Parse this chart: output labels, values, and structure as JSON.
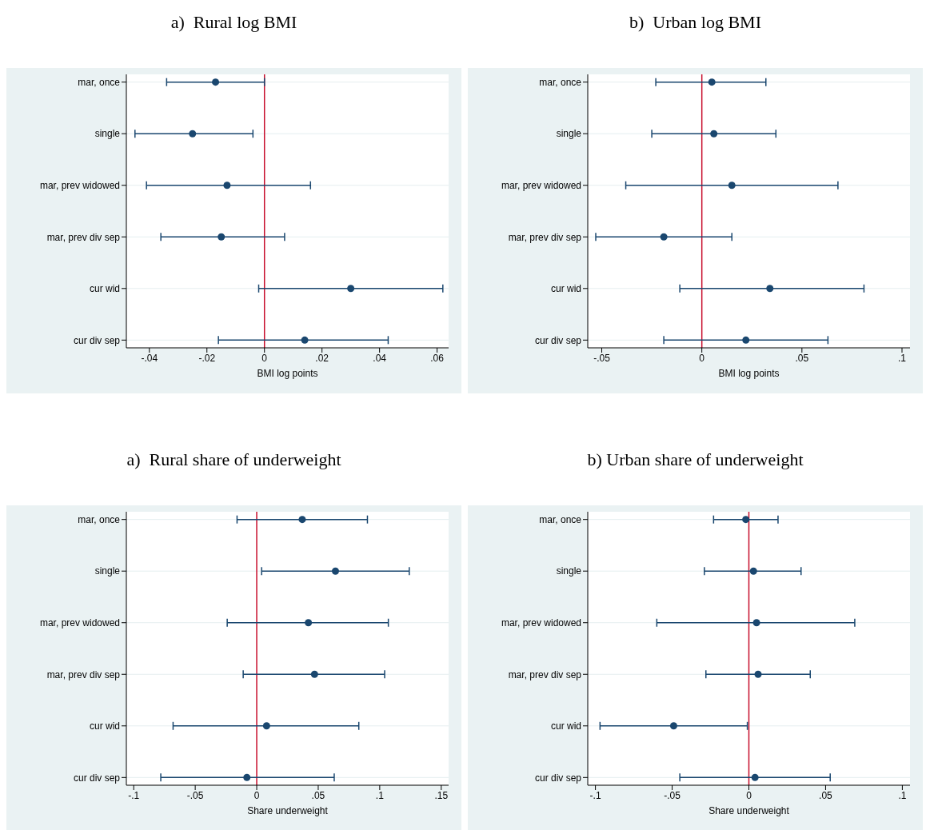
{
  "chart_data": [
    {
      "type": "scatter",
      "orientation": "horizontal",
      "title": "a)  Rural log BMI",
      "xlabel": "BMI log points",
      "categories": [
        "mar, once",
        "single",
        "mar, prev widowed",
        "mar, prev div sep",
        "cur wid",
        "cur div sep"
      ],
      "color": "#1a476f",
      "marker": "circle",
      "grid": "y",
      "values": [
        -0.017,
        -0.025,
        -0.013,
        -0.015,
        0.03,
        0.014
      ],
      "errors": [
        [
          -0.034,
          0.0
        ],
        [
          -0.045,
          -0.004
        ],
        [
          -0.041,
          0.016
        ],
        [
          -0.036,
          0.007
        ],
        [
          -0.002,
          0.062
        ],
        [
          -0.016,
          0.043
        ]
      ],
      "xlim": [
        -0.048,
        0.064
      ],
      "xticks": [
        {
          "value": -0.04,
          "label": "-.04"
        },
        {
          "value": -0.02,
          "label": "-.02"
        },
        {
          "value": 0,
          "label": "0"
        },
        {
          "value": 0.02,
          "label": ".02"
        },
        {
          "value": 0.04,
          "label": ".04"
        },
        {
          "value": 0.06,
          "label": ".06"
        }
      ],
      "ref_lines": [
        {
          "axis": "x",
          "value": 0,
          "color": "#c8102e"
        }
      ]
    },
    {
      "type": "scatter",
      "orientation": "horizontal",
      "title": "b)  Urban log BMI",
      "xlabel": "BMI log points",
      "categories": [
        "mar, once",
        "single",
        "mar, prev widowed",
        "mar, prev div sep",
        "cur wid",
        "cur div sep"
      ],
      "color": "#1a476f",
      "marker": "circle",
      "grid": "y",
      "values": [
        0.005,
        0.006,
        0.015,
        -0.019,
        0.034,
        0.022
      ],
      "errors": [
        [
          -0.023,
          0.032
        ],
        [
          -0.025,
          0.037
        ],
        [
          -0.038,
          0.068
        ],
        [
          -0.053,
          0.015
        ],
        [
          -0.011,
          0.081
        ],
        [
          -0.019,
          0.063
        ]
      ],
      "xlim": [
        -0.057,
        0.104
      ],
      "xticks": [
        {
          "value": -0.05,
          "label": "-.05"
        },
        {
          "value": 0,
          "label": "0"
        },
        {
          "value": 0.05,
          "label": ".05"
        },
        {
          "value": 0.1,
          "label": ".1"
        }
      ],
      "ref_lines": [
        {
          "axis": "x",
          "value": 0,
          "color": "#c8102e"
        }
      ]
    },
    {
      "type": "scatter",
      "orientation": "horizontal",
      "title": "a)  Rural share of underweight",
      "xlabel": "Share underweight",
      "categories": [
        "mar, once",
        "single",
        "mar, prev widowed",
        "mar, prev div sep",
        "cur wid",
        "cur div sep"
      ],
      "color": "#1a476f",
      "marker": "circle",
      "grid": "y",
      "values": [
        0.037,
        0.064,
        0.042,
        0.047,
        0.008,
        -0.008
      ],
      "errors": [
        [
          -0.016,
          0.09
        ],
        [
          0.004,
          0.124
        ],
        [
          -0.024,
          0.107
        ],
        [
          -0.011,
          0.104
        ],
        [
          -0.068,
          0.083
        ],
        [
          -0.078,
          0.063
        ]
      ],
      "xlim": [
        -0.106,
        0.156
      ],
      "xticks": [
        {
          "value": -0.1,
          "label": "-.1"
        },
        {
          "value": -0.05,
          "label": "-.05"
        },
        {
          "value": 0,
          "label": "0"
        },
        {
          "value": 0.05,
          "label": ".05"
        },
        {
          "value": 0.1,
          "label": ".1"
        },
        {
          "value": 0.15,
          "label": ".15"
        }
      ],
      "ref_lines": [
        {
          "axis": "x",
          "value": 0,
          "color": "#c8102e"
        }
      ]
    },
    {
      "type": "scatter",
      "orientation": "horizontal",
      "title": "b) Urban share of underweight",
      "xlabel": "Share underweight",
      "categories": [
        "mar, once",
        "single",
        "mar, prev widowed",
        "mar, prev div sep",
        "cur wid",
        "cur div sep"
      ],
      "color": "#1a476f",
      "marker": "circle",
      "grid": "y",
      "values": [
        -0.002,
        0.003,
        0.005,
        0.006,
        -0.049,
        0.004
      ],
      "errors": [
        [
          -0.023,
          0.019
        ],
        [
          -0.029,
          0.034
        ],
        [
          -0.06,
          0.069
        ],
        [
          -0.028,
          0.04
        ],
        [
          -0.097,
          -0.001
        ],
        [
          -0.045,
          0.053
        ]
      ],
      "xlim": [
        -0.105,
        0.105
      ],
      "xticks": [
        {
          "value": -0.1,
          "label": "-.1"
        },
        {
          "value": -0.05,
          "label": "-.05"
        },
        {
          "value": 0,
          "label": "0"
        },
        {
          "value": 0.05,
          "label": ".05"
        },
        {
          "value": 0.1,
          "label": ".1"
        }
      ],
      "ref_lines": [
        {
          "axis": "x",
          "value": 0,
          "color": "#c8102e"
        }
      ]
    }
  ]
}
